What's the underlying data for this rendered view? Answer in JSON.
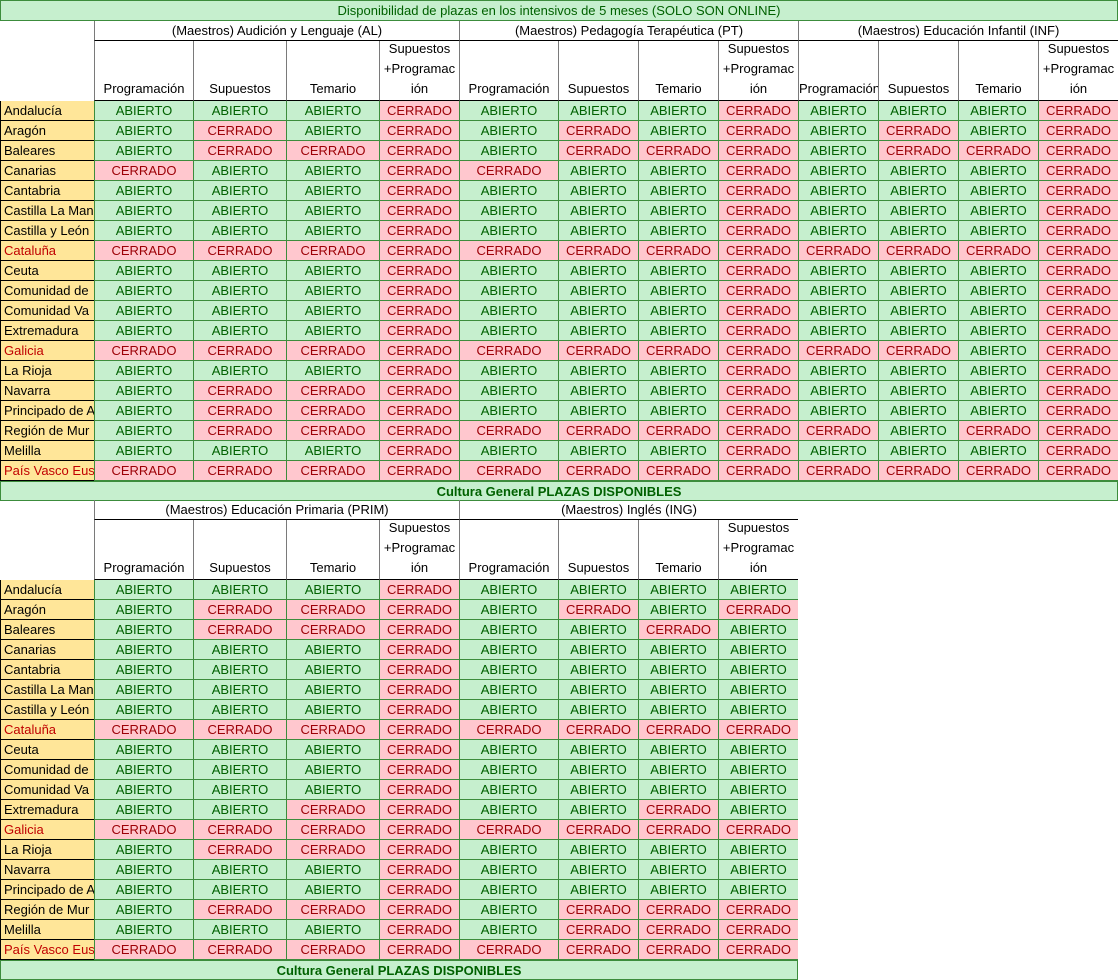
{
  "sheet_title": "Disponibilidad de plazas en los intensivos de 5 meses (SOLO SON ONLINE)",
  "footer_label": "Cultura General PLAZAS DISPONIBLES",
  "status_labels": {
    "A": "ABIERTO",
    "C": "CERRADO"
  },
  "columns": [
    "Programación",
    "Supuestos",
    "Temario",
    "Supuestos +Programac ión"
  ],
  "colors": {
    "open_fill": "#c6efce",
    "open_text": "#006100",
    "closed_fill": "#ffc7ce",
    "closed_text": "#9c0006",
    "region_fill": "#ffe699"
  },
  "regions": [
    "Andalucía",
    "Aragón",
    "Baleares",
    "Canarias",
    "Cantabria",
    "Castilla La Man",
    "Castilla y León",
    "Cataluña",
    "Ceuta",
    "Comunidad de",
    "Comunidad Va",
    "Extremadura",
    "Galicia",
    "La Rioja",
    "Navarra",
    "Principado de A",
    "Región de Mur",
    "Melilla",
    "País Vasco Eusk"
  ],
  "region_red": [
    false,
    false,
    false,
    false,
    false,
    false,
    false,
    true,
    false,
    false,
    false,
    false,
    true,
    false,
    false,
    false,
    false,
    false,
    true
  ],
  "table_top": {
    "groups": [
      {
        "title": "(Maestros) Audición y Lenguaje (AL)",
        "rows": [
          "AAAC",
          "ACAC",
          "ACCC",
          "CAAC",
          "AAAC",
          "AAAC",
          "AAAC",
          "CCCC",
          "AAAC",
          "AAAC",
          "AAAC",
          "AAAC",
          "CCCC",
          "AAAC",
          "ACCC",
          "ACCC",
          "ACCC",
          "AAAC",
          "CCCC"
        ]
      },
      {
        "title": "(Maestros) Pedagogía Terapéutica (PT)",
        "rows": [
          "AAAC",
          "ACAC",
          "ACCC",
          "CAAC",
          "AAAC",
          "AAAC",
          "AAAC",
          "CCCC",
          "AAAC",
          "AAAC",
          "AAAC",
          "AAAC",
          "CCCC",
          "AAAC",
          "AAAC",
          "AAAC",
          "CCCC",
          "AAAC",
          "CCCC"
        ]
      },
      {
        "title": "(Maestros) Educación Infantil (INF)",
        "rows": [
          "AAAC",
          "ACAC",
          "ACCC",
          "AAAC",
          "AAAC",
          "AAAC",
          "AAAC",
          "CCCC",
          "AAAC",
          "AAAC",
          "AAAC",
          "AAAC",
          "CCAC",
          "AAAC",
          "AAAC",
          "AAAC",
          "CACC",
          "AAAC",
          "CCCC"
        ]
      }
    ]
  },
  "table_bottom": {
    "groups": [
      {
        "title": "(Maestros) Educación Primaria (PRIM)",
        "rows": [
          "AAAC",
          "ACCC",
          "ACCC",
          "AAAC",
          "AAAC",
          "AAAC",
          "AAAC",
          "CCCC",
          "AAAC",
          "AAAC",
          "AAAC",
          "AACC",
          "CCCC",
          "ACCC",
          "AAAC",
          "AAAC",
          "ACCC",
          "AAAC",
          "CCCC"
        ]
      },
      {
        "title": "(Maestros) Inglés (ING)",
        "rows": [
          "AAAA",
          "ACAC",
          "AACA",
          "AAAA",
          "AAAA",
          "AAAA",
          "AAAA",
          "CCCC",
          "AAAA",
          "AAAA",
          "AAAA",
          "AACA",
          "CCCC",
          "AAAA",
          "AAAA",
          "AAAA",
          "ACCC",
          "ACCC",
          "CCCC"
        ]
      }
    ]
  }
}
